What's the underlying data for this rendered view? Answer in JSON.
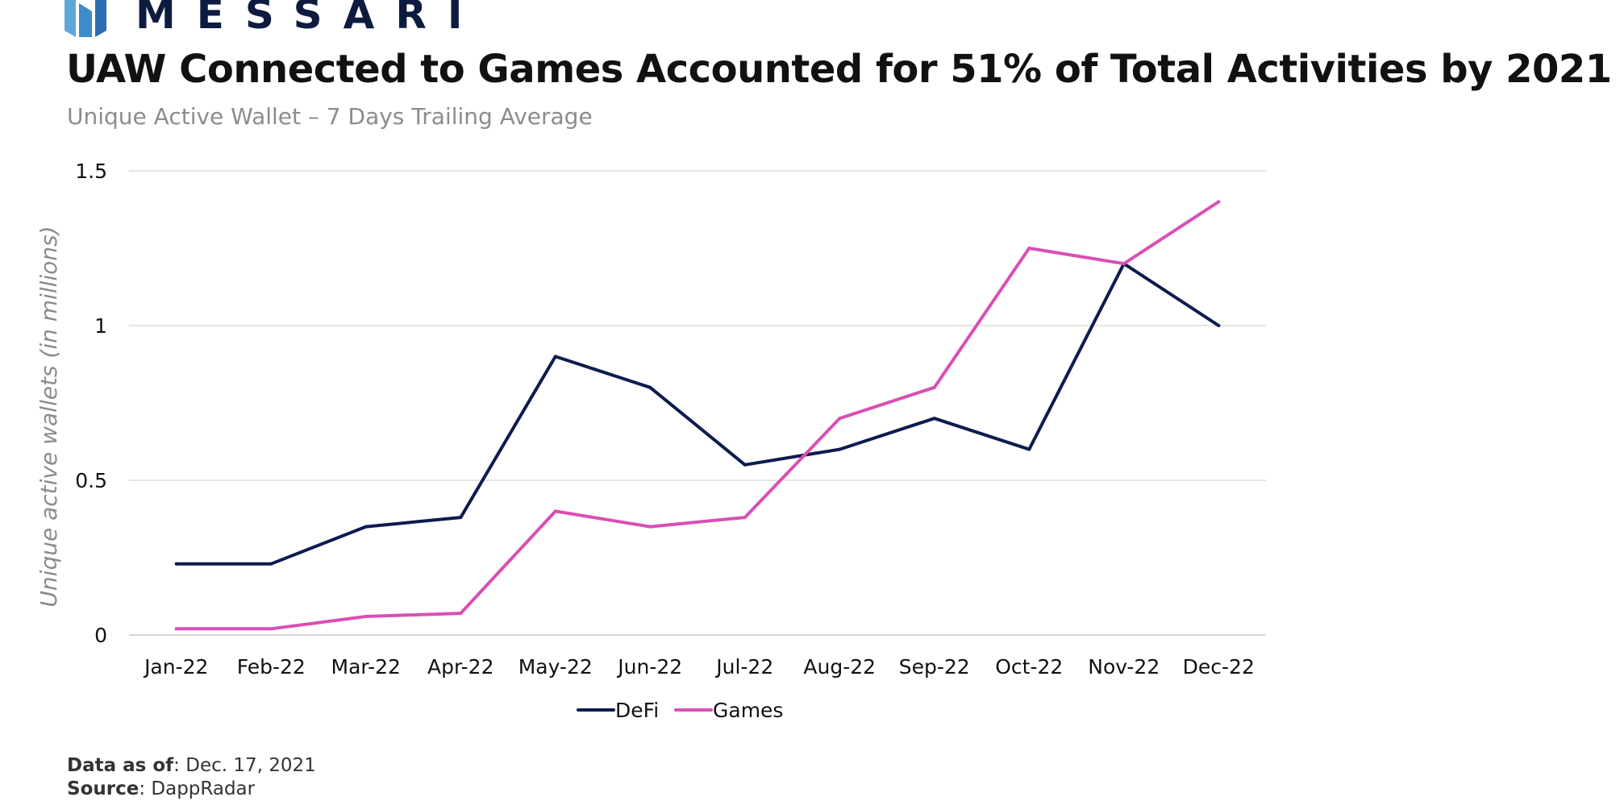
{
  "brand": {
    "name": "MESSARI",
    "colors": [
      "#5fa7d9",
      "#2e6db1",
      "#0d1b3e"
    ]
  },
  "title": "UAW Connected to Games Accounted for 51% of Total Activities by 2021",
  "subtitle": "Unique Active Wallet – 7 Days Trailing Average",
  "footer": {
    "data_as_of_label": "Data as of",
    "data_as_of_value": ": Dec. 17, 2021",
    "source_label": "Source",
    "source_value": ": DappRadar"
  },
  "chart_data": {
    "type": "line",
    "ylabel": "Unique active wallets (in millions)",
    "xlabel": "",
    "categories": [
      "Jan-22",
      "Feb-22",
      "Mar-22",
      "Apr-22",
      "May-22",
      "Jun-22",
      "Jul-22",
      "Aug-22",
      "Sep-22",
      "Oct-22",
      "Nov-22",
      "Dec-22"
    ],
    "ylim": [
      0,
      1.5
    ],
    "yticks": [
      0,
      0.5,
      1,
      1.5
    ],
    "ytick_labels": [
      "0",
      "0.5",
      "1",
      "1.5"
    ],
    "grid": true,
    "legend": "bottom",
    "series": [
      {
        "name": "DeFi",
        "color": "#0d1b4e",
        "values": [
          0.23,
          0.23,
          0.35,
          0.38,
          0.9,
          0.8,
          0.55,
          0.6,
          0.7,
          0.6,
          1.2,
          1.0
        ]
      },
      {
        "name": "Games",
        "color": "#d94fb4",
        "values": [
          0.02,
          0.02,
          0.06,
          0.07,
          0.4,
          0.35,
          0.38,
          0.7,
          0.8,
          1.25,
          1.2,
          1.4
        ]
      }
    ]
  }
}
